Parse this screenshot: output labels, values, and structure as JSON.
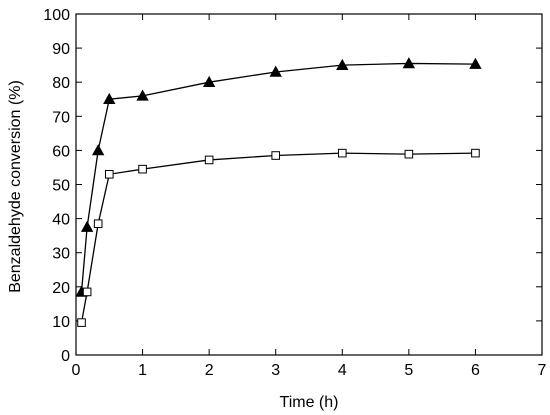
{
  "chart_data": {
    "type": "line",
    "xlabel": "Time (h)",
    "ylabel": "Benzaldehyde conversion (%)",
    "xlim": [
      0,
      7
    ],
    "ylim": [
      0,
      100
    ],
    "xticks": [
      0,
      1,
      2,
      3,
      4,
      5,
      6,
      7
    ],
    "yticks": [
      0,
      10,
      20,
      30,
      40,
      50,
      60,
      70,
      80,
      90,
      100
    ],
    "grid": false,
    "legend": "none",
    "series": [
      {
        "marker": "filled-triangle",
        "color": "#000000",
        "x": [
          0.083,
          0.167,
          0.333,
          0.5,
          1,
          2,
          3,
          4,
          5,
          6
        ],
        "y": [
          18.5,
          37.5,
          60,
          75,
          76,
          80,
          83,
          85,
          85.5,
          85.3
        ]
      },
      {
        "marker": "open-square",
        "color": "#000000",
        "x": [
          0.083,
          0.167,
          0.333,
          0.5,
          1,
          2,
          3,
          4,
          5,
          6
        ],
        "y": [
          9.5,
          18.5,
          38.5,
          53,
          54.5,
          57.2,
          58.5,
          59.2,
          58.9,
          59.2
        ]
      }
    ]
  }
}
